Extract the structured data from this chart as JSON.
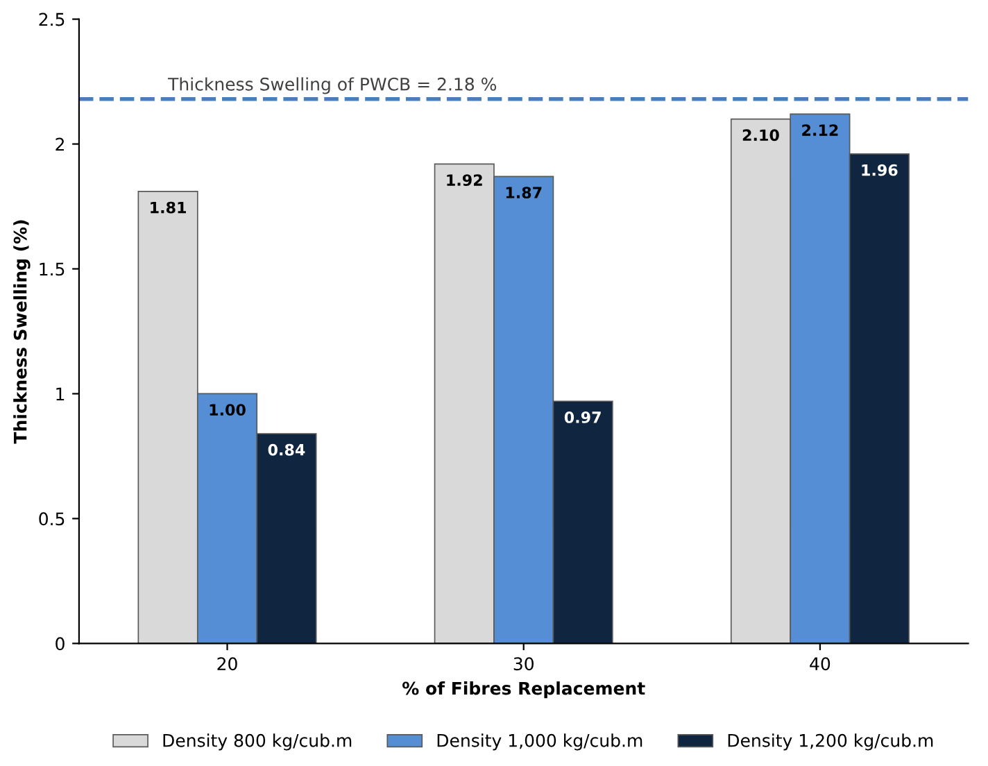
{
  "chart_data": {
    "type": "bar",
    "xlabel": "% of Fibres Replacement",
    "ylabel": "Thickness Swelling (%)",
    "categories": [
      "20",
      "30",
      "40"
    ],
    "series": [
      {
        "name": "Density 800 kg/cub.m",
        "color": "#d9d9d9",
        "values": [
          1.81,
          1.92,
          2.1
        ]
      },
      {
        "name": "Density 1,000 kg/cub.m",
        "color": "#558ed5",
        "values": [
          1.0,
          1.87,
          2.12
        ]
      },
      {
        "name": "Density 1,200 kg/cub.m",
        "color": "#10253f",
        "values": [
          0.84,
          0.97,
          1.96
        ]
      }
    ],
    "value_labels": [
      [
        "1.81",
        "1.92",
        "2.10"
      ],
      [
        "1.00",
        "1.87",
        "2.12"
      ],
      [
        "0.84",
        "0.97",
        "1.96"
      ]
    ],
    "ylim": [
      0,
      2.5
    ],
    "yticks": [
      0,
      0.5,
      1,
      1.5,
      2,
      2.5
    ],
    "ref_lines": [
      {
        "axis": "y",
        "value": 2.18,
        "label": "Thickness Swelling of PWCB = 2.18 %",
        "color": "#4a7ebb",
        "line_style": "dashed"
      }
    ],
    "grid": false,
    "legend": "bottom"
  }
}
